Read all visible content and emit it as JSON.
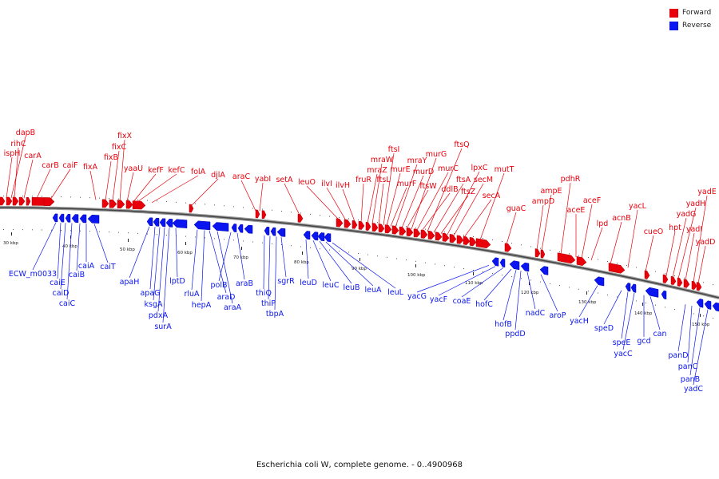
{
  "colors": {
    "forward": "#e8000b",
    "reverse": "#0a15f0"
  },
  "legend": [
    {
      "label": "Forward",
      "color": "#e8000b"
    },
    {
      "label": "Reverse",
      "color": "#0a15f0"
    }
  ],
  "caption": "Escherichia coli W, complete genome. - 0..4900968",
  "scale_labels": [
    "30 kbp",
    "40 kbp",
    "50 kbp",
    "60 kbp",
    "70 kbp",
    "80 kbp",
    "90 kbp",
    "100 kbp",
    "110 kbp",
    "120 kbp",
    "130 kbp",
    "140 kbp",
    "150 kbp"
  ],
  "forward_genes": [
    "dapB",
    "rihC",
    "ispH",
    "carA",
    "carB",
    "caiF",
    "fixA",
    "fixB",
    "fixC",
    "fixX",
    "yaaU",
    "kefF",
    "kefC",
    "folA",
    "djlA",
    "araC",
    "yabI",
    "setA",
    "leuO",
    "ilvI",
    "ilvH",
    "fruR",
    "mraZ",
    "mraW",
    "ftsL",
    "ftsI",
    "murE",
    "murF",
    "mraY",
    "murD",
    "ftsW",
    "murG",
    "murC",
    "ddlB",
    "ftsQ",
    "ftsA",
    "ftsZ",
    "lpxC",
    "secM",
    "secA",
    "mutT",
    "guaC",
    "ampD",
    "ampE",
    "pdhR",
    "aceE",
    "aceF",
    "lpd",
    "acnB",
    "yacL",
    "cueO",
    "hpt",
    "yadG",
    "yadH",
    "yadI",
    "yadE",
    "yadD"
  ],
  "reverse_genes": [
    "ECW_m0033",
    "caiE",
    "caiD",
    "caiC",
    "caiB",
    "caiA",
    "caiT",
    "apaH",
    "apaG",
    "ksgA",
    "pdxA",
    "surA",
    "lptD",
    "rluA",
    "hepA",
    "araD",
    "araA",
    "polB",
    "araB",
    "thiQ",
    "thiP",
    "tbpA",
    "sgrR",
    "leuD",
    "leuC",
    "leuB",
    "leuA",
    "leuL",
    "yacG",
    "yacF",
    "coaE",
    "hofC",
    "hofB",
    "ppdD",
    "nadC",
    "aroP",
    "yacH",
    "speD",
    "speE",
    "yacC",
    "gcd",
    "can",
    "panD",
    "panC",
    "panB",
    "yadC"
  ]
}
